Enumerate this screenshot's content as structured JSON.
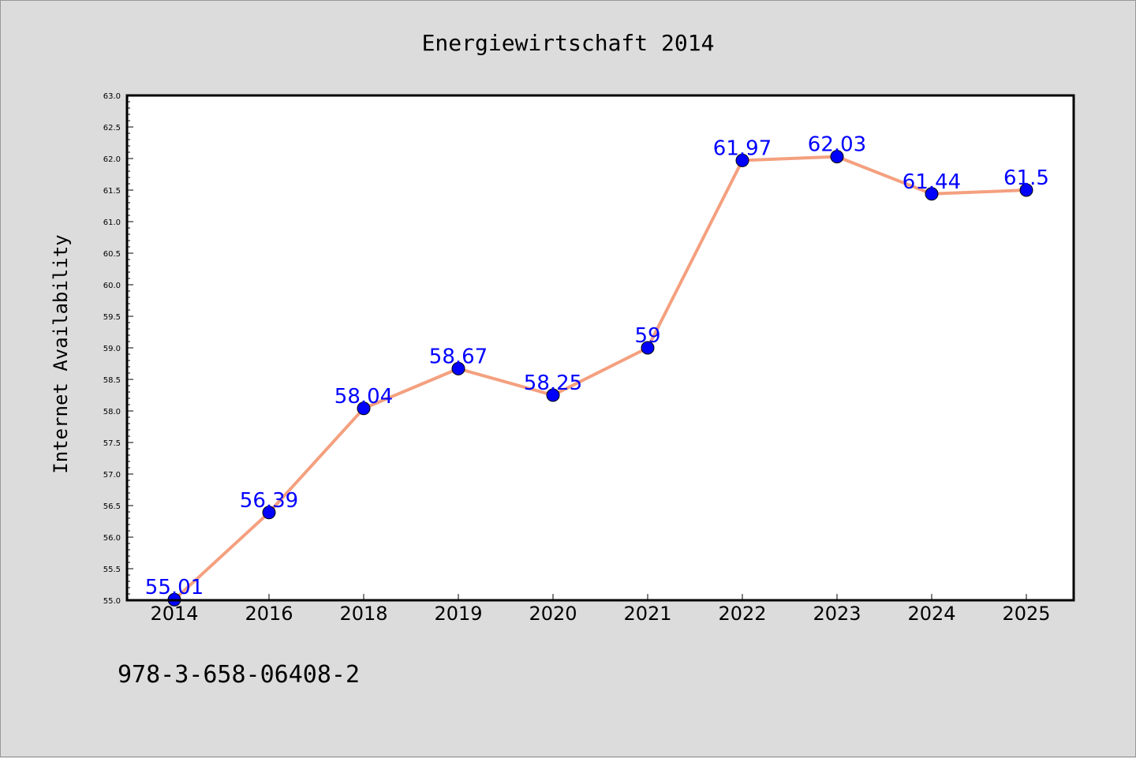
{
  "chart_data": {
    "type": "line",
    "title": "Energiewirtschaft 2014",
    "xlabel": "",
    "ylabel": "Internet Availability",
    "categories": [
      "2014",
      "2016",
      "2018",
      "2019",
      "2020",
      "2021",
      "2022",
      "2023",
      "2024",
      "2025"
    ],
    "series": [
      {
        "values": [
          55.01,
          56.39,
          58.04,
          58.67,
          58.25,
          59,
          61.97,
          62.03,
          61.44,
          61.5
        ],
        "labels": [
          "55.01",
          "56.39",
          "58.04",
          "58.67",
          "58.25",
          "59",
          "61.97",
          "62.03",
          "61.44",
          "61.5"
        ],
        "line_color": "#f4a07f",
        "marker_color": "#0000ff"
      }
    ],
    "ylim": [
      55.0,
      63.0
    ],
    "yticks": [
      "55.0",
      "55.5",
      "56.0",
      "56.5",
      "57.0",
      "57.5",
      "58.0",
      "58.5",
      "59.0",
      "59.5",
      "60.0",
      "60.5",
      "61.0",
      "61.5",
      "62.0",
      "62.5",
      "63.0"
    ],
    "grid": false,
    "legend": "none"
  },
  "footer": {
    "isbn": "978-3-658-06408-2"
  },
  "colors": {
    "background": "#dcdcdc",
    "plot_area": "#ffffff",
    "line": "#f4a07f",
    "marker": "#0000ff",
    "data_label": "#0000ff"
  }
}
